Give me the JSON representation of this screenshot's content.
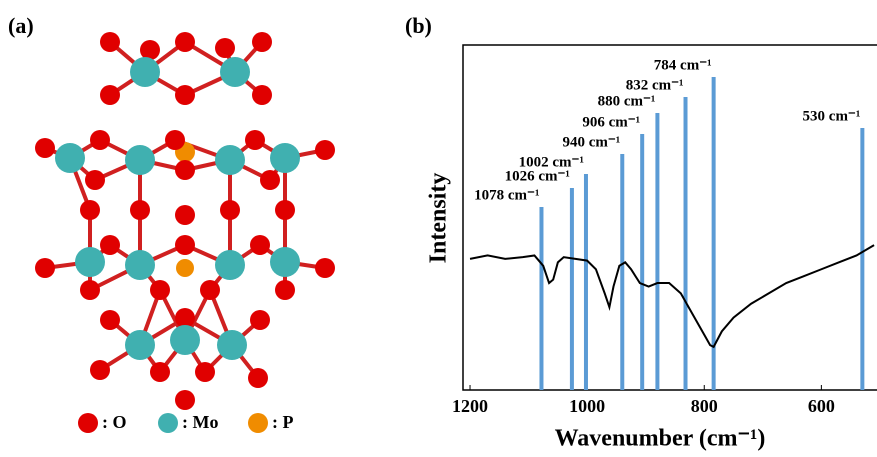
{
  "panel_a": {
    "label": "(a)",
    "legend": [
      ": O",
      ": Mo",
      ": P"
    ]
  },
  "chart_data": {
    "type": "line",
    "label": "(b)",
    "y_label": "Intensity",
    "x_label": "Wavenumber (cm⁻¹)",
    "xlim": [
      1212,
      505
    ],
    "xticks": [
      1200,
      1000,
      800,
      600
    ],
    "ylim": [
      0,
      100
    ],
    "color": "#000000",
    "x": [
      1200,
      1170,
      1140,
      1110,
      1090,
      1075,
      1065,
      1058,
      1050,
      1040,
      1020,
      1000,
      985,
      970,
      962,
      955,
      945,
      935,
      925,
      910,
      895,
      880,
      860,
      840,
      820,
      800,
      790,
      784,
      770,
      750,
      720,
      690,
      660,
      630,
      600,
      570,
      540,
      510
    ],
    "values": [
      38,
      39,
      38,
      38.5,
      39,
      36,
      31,
      32,
      37,
      38.5,
      38,
      37.5,
      35,
      28,
      24,
      30,
      36,
      37,
      35,
      31,
      30,
      31,
      31,
      28,
      22,
      16,
      13,
      12.5,
      17,
      21,
      25,
      28,
      31,
      33,
      35,
      37,
      39,
      42
    ],
    "peaks": [
      {
        "value": 1078,
        "label": "1078 cm⁻¹"
      },
      {
        "value": 1026,
        "label": "1026 cm⁻¹"
      },
      {
        "value": 1002,
        "label": "1002 cm⁻¹"
      },
      {
        "value": 940,
        "label": "940 cm⁻¹"
      },
      {
        "value": 906,
        "label": "906 cm⁻¹"
      },
      {
        "value": 880,
        "label": "880 cm⁻¹"
      },
      {
        "value": 832,
        "label": "832 cm⁻¹"
      },
      {
        "value": 784,
        "label": "784 cm⁻¹"
      },
      {
        "value": 530,
        "label": "530 cm⁻¹"
      }
    ],
    "peak_color": "#5b9bd5"
  }
}
